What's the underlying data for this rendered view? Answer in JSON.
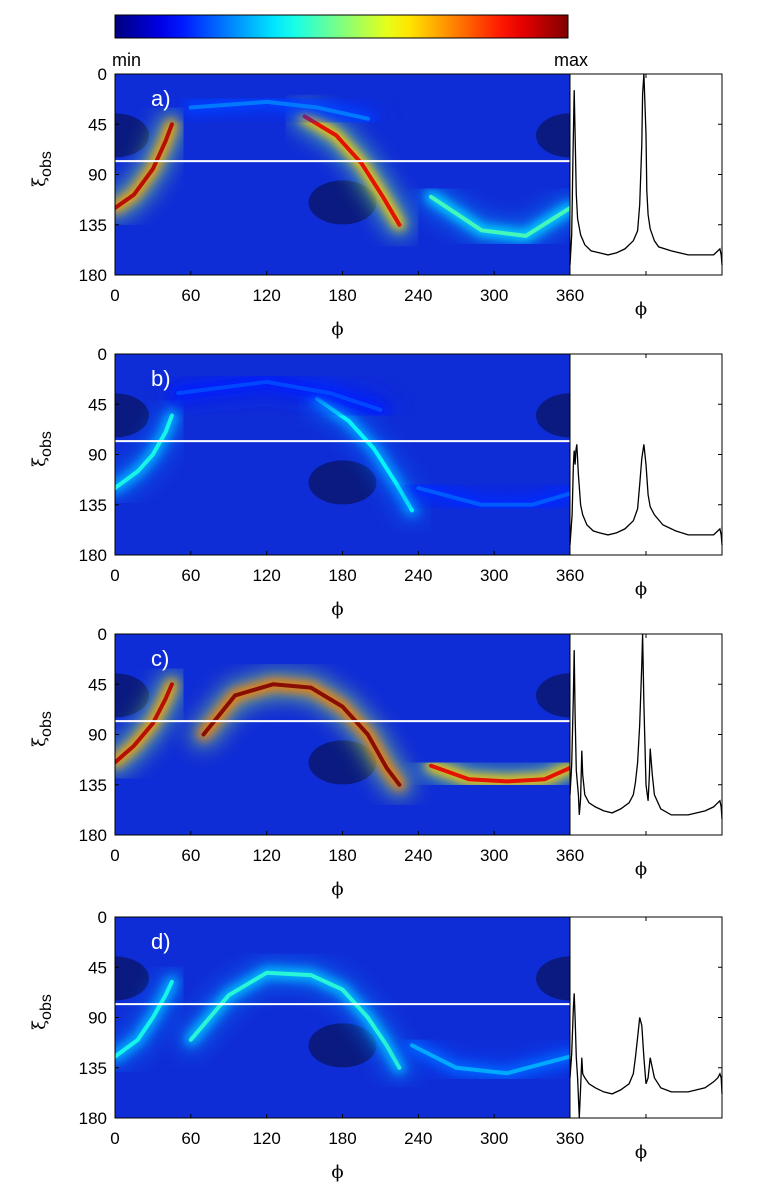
{
  "colorbar": {
    "min_label": "min",
    "max_label": "max",
    "colormap": [
      "#00008f",
      "#0000ff",
      "#00ffff",
      "#ffff00",
      "#ff0000",
      "#800000"
    ]
  },
  "chart_data": [
    {
      "type": "heatmap",
      "panel_label": "a)",
      "xlabel": "ϕ",
      "ylabel": "ξ",
      "ylabel_sub": "obs",
      "xlim": [
        0,
        360
      ],
      "ylim": [
        0,
        180
      ],
      "xticks": [
        "0",
        "60",
        "120",
        "180",
        "240",
        "300",
        "360"
      ],
      "yticks": [
        "0",
        "45",
        "90",
        "135",
        "180"
      ],
      "horizontal_line_y": 78,
      "bands": [
        {
          "points": [
            [
              0,
              120
            ],
            [
              15,
              108
            ],
            [
              30,
              85
            ],
            [
              40,
              60
            ],
            [
              45,
              45
            ]
          ],
          "peak": 0.95
        },
        {
          "points": [
            [
              150,
              38
            ],
            [
              175,
              55
            ],
            [
              195,
              80
            ],
            [
              212,
              110
            ],
            [
              225,
              135
            ]
          ],
          "peak": 0.9
        },
        {
          "points": [
            [
              250,
              110
            ],
            [
              290,
              140
            ],
            [
              325,
              145
            ],
            [
              360,
              120
            ]
          ],
          "peak": 0.45
        },
        {
          "points": [
            [
              60,
              30
            ],
            [
              120,
              25
            ],
            [
              160,
              30
            ],
            [
              200,
              40
            ]
          ],
          "peak": 0.25
        }
      ],
      "dark_spots": [
        [
          0,
          55
        ],
        [
          180,
          115
        ],
        [
          360,
          55
        ]
      ],
      "side_profile": {
        "xlabel": "ϕ",
        "phi": [
          0,
          4,
          7,
          10,
          12,
          15,
          18,
          25,
          35,
          50,
          70,
          90,
          110,
          130,
          150,
          160,
          165,
          170,
          172,
          175,
          180,
          182,
          185,
          190,
          195,
          200,
          210,
          240,
          280,
          320,
          340,
          350,
          355,
          358,
          360
        ],
        "values": [
          0.05,
          0.2,
          0.6,
          0.92,
          0.7,
          0.4,
          0.28,
          0.2,
          0.15,
          0.12,
          0.11,
          0.1,
          0.11,
          0.13,
          0.17,
          0.22,
          0.35,
          0.65,
          0.9,
          1.0,
          0.7,
          0.42,
          0.3,
          0.23,
          0.2,
          0.17,
          0.14,
          0.12,
          0.1,
          0.1,
          0.1,
          0.12,
          0.13,
          0.1,
          0.05
        ]
      }
    },
    {
      "type": "heatmap",
      "panel_label": "b)",
      "xlabel": "ϕ",
      "ylabel": "ξ",
      "ylabel_sub": "obs",
      "xlim": [
        0,
        360
      ],
      "ylim": [
        0,
        180
      ],
      "xticks": [
        "0",
        "60",
        "120",
        "180",
        "240",
        "300",
        "360"
      ],
      "yticks": [
        "0",
        "45",
        "90",
        "135",
        "180"
      ],
      "horizontal_line_y": 78,
      "bands": [
        {
          "points": [
            [
              0,
              120
            ],
            [
              18,
              105
            ],
            [
              30,
              90
            ],
            [
              40,
              70
            ],
            [
              45,
              55
            ]
          ],
          "peak": 0.4
        },
        {
          "points": [
            [
              160,
              40
            ],
            [
              185,
              60
            ],
            [
              205,
              85
            ],
            [
              222,
              115
            ],
            [
              235,
              140
            ]
          ],
          "peak": 0.38
        },
        {
          "points": [
            [
              240,
              120
            ],
            [
              290,
              135
            ],
            [
              330,
              135
            ],
            [
              360,
              125
            ]
          ],
          "peak": 0.22
        },
        {
          "points": [
            [
              50,
              35
            ],
            [
              120,
              25
            ],
            [
              170,
              35
            ],
            [
              210,
              50
            ]
          ],
          "peak": 0.2
        }
      ],
      "dark_spots": [
        [
          0,
          55
        ],
        [
          180,
          115
        ],
        [
          360,
          55
        ]
      ],
      "side_profile": {
        "xlabel": "ϕ",
        "phi": [
          0,
          5,
          8,
          10,
          12,
          14,
          16,
          20,
          25,
          30,
          40,
          55,
          70,
          90,
          110,
          130,
          150,
          160,
          165,
          170,
          175,
          180,
          185,
          190,
          200,
          220,
          250,
          280,
          310,
          340,
          350,
          355,
          358,
          360
        ],
        "values": [
          0.05,
          0.2,
          0.45,
          0.52,
          0.45,
          0.52,
          0.55,
          0.4,
          0.25,
          0.2,
          0.15,
          0.12,
          0.11,
          0.1,
          0.11,
          0.13,
          0.17,
          0.23,
          0.35,
          0.48,
          0.55,
          0.45,
          0.3,
          0.24,
          0.2,
          0.15,
          0.12,
          0.1,
          0.1,
          0.1,
          0.12,
          0.13,
          0.1,
          0.05
        ]
      }
    },
    {
      "type": "heatmap",
      "panel_label": "c)",
      "xlabel": "ϕ",
      "ylabel": "ξ",
      "ylabel_sub": "obs",
      "xlim": [
        0,
        360
      ],
      "ylim": [
        0,
        180
      ],
      "xticks": [
        "0",
        "60",
        "120",
        "180",
        "240",
        "300",
        "360"
      ],
      "yticks": [
        "0",
        "45",
        "90",
        "135",
        "180"
      ],
      "horizontal_line_y": 78,
      "bands": [
        {
          "points": [
            [
              0,
              115
            ],
            [
              15,
              100
            ],
            [
              30,
              80
            ],
            [
              40,
              58
            ],
            [
              45,
              45
            ]
          ],
          "peak": 0.95
        },
        {
          "points": [
            [
              70,
              90
            ],
            [
              95,
              55
            ],
            [
              125,
              45
            ],
            [
              155,
              48
            ],
            [
              180,
              65
            ],
            [
              200,
              90
            ],
            [
              215,
              120
            ],
            [
              225,
              135
            ]
          ],
          "peak": 1.0
        },
        {
          "points": [
            [
              250,
              118
            ],
            [
              280,
              130
            ],
            [
              310,
              132
            ],
            [
              340,
              130
            ],
            [
              360,
              120
            ]
          ],
          "peak": 0.9
        }
      ],
      "dark_spots": [
        [
          0,
          55
        ],
        [
          180,
          115
        ],
        [
          360,
          55
        ]
      ],
      "side_profile": {
        "xlabel": "ϕ",
        "phi": [
          0,
          4,
          8,
          10,
          12,
          15,
          20,
          22,
          25,
          28,
          30,
          35,
          45,
          60,
          80,
          100,
          120,
          140,
          150,
          155,
          160,
          165,
          170,
          172,
          175,
          180,
          185,
          188,
          190,
          195,
          200,
          215,
          240,
          280,
          320,
          340,
          350,
          355,
          358,
          360
        ],
        "values": [
          0.2,
          0.35,
          0.7,
          0.92,
          0.6,
          0.32,
          0.2,
          0.1,
          0.18,
          0.42,
          0.3,
          0.2,
          0.16,
          0.14,
          0.12,
          0.11,
          0.13,
          0.16,
          0.2,
          0.26,
          0.36,
          0.55,
          0.85,
          1.0,
          0.65,
          0.25,
          0.17,
          0.3,
          0.43,
          0.3,
          0.2,
          0.13,
          0.1,
          0.1,
          0.12,
          0.14,
          0.16,
          0.17,
          0.14,
          0.08
        ]
      }
    },
    {
      "type": "heatmap",
      "panel_label": "d)",
      "xlabel": "ϕ",
      "ylabel": "ξ",
      "ylabel_sub": "obs",
      "xlim": [
        0,
        360
      ],
      "ylim": [
        0,
        180
      ],
      "xticks": [
        "0",
        "60",
        "120",
        "180",
        "240",
        "300",
        "360"
      ],
      "yticks": [
        "0",
        "45",
        "90",
        "135",
        "180"
      ],
      "horizontal_line_y": 78,
      "bands": [
        {
          "points": [
            [
              0,
              125
            ],
            [
              18,
              110
            ],
            [
              30,
              90
            ],
            [
              40,
              70
            ],
            [
              45,
              58
            ]
          ],
          "peak": 0.4
        },
        {
          "points": [
            [
              60,
              110
            ],
            [
              90,
              70
            ],
            [
              120,
              50
            ],
            [
              155,
              52
            ],
            [
              180,
              65
            ],
            [
              200,
              90
            ],
            [
              215,
              115
            ],
            [
              225,
              135
            ]
          ],
          "peak": 0.42
        },
        {
          "points": [
            [
              235,
              115
            ],
            [
              270,
              135
            ],
            [
              310,
              140
            ],
            [
              360,
              125
            ]
          ],
          "peak": 0.3
        }
      ],
      "dark_spots": [
        [
          0,
          55
        ],
        [
          180,
          115
        ],
        [
          360,
          55
        ]
      ],
      "side_profile": {
        "xlabel": "ϕ",
        "phi": [
          0,
          4,
          8,
          10,
          12,
          15,
          18,
          22,
          25,
          28,
          30,
          35,
          45,
          60,
          80,
          100,
          120,
          140,
          150,
          155,
          160,
          165,
          170,
          175,
          180,
          185,
          190,
          195,
          200,
          215,
          240,
          280,
          320,
          340,
          350,
          355,
          358,
          360
        ],
        "values": [
          0.2,
          0.32,
          0.55,
          0.62,
          0.5,
          0.3,
          0.2,
          0.0,
          0.15,
          0.3,
          0.22,
          0.2,
          0.17,
          0.15,
          0.13,
          0.12,
          0.14,
          0.17,
          0.22,
          0.3,
          0.4,
          0.5,
          0.46,
          0.3,
          0.17,
          0.2,
          0.3,
          0.25,
          0.2,
          0.15,
          0.13,
          0.13,
          0.15,
          0.18,
          0.2,
          0.22,
          0.2,
          0.12
        ]
      }
    }
  ]
}
